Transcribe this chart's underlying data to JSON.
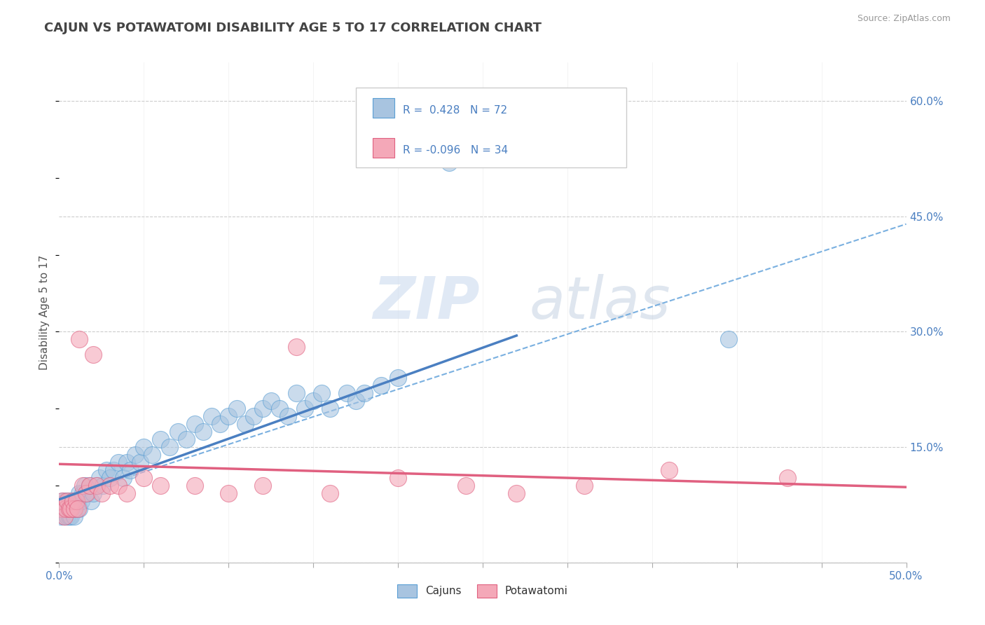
{
  "title": "CAJUN VS POTAWATOMI DISABILITY AGE 5 TO 17 CORRELATION CHART",
  "source_text": "Source: ZipAtlas.com",
  "ylabel": "Disability Age 5 to 17",
  "xlim": [
    0,
    0.5
  ],
  "ylim": [
    0,
    0.65
  ],
  "cajun_color": "#a8c4e0",
  "cajun_edge_color": "#5a9fd4",
  "potawatomi_color": "#f4a8b8",
  "potawatomi_edge_color": "#e06080",
  "cajun_line_color": "#4a7fc1",
  "potawatomi_line_color": "#e06080",
  "dash_line_color": "#7ab0e0",
  "watermark_color": "#d0dff0",
  "background_color": "#ffffff",
  "grid_color": "#cccccc",
  "title_color": "#444444",
  "tick_label_color": "#4a7fc1",
  "ylabel_color": "#555555",
  "cajun_x": [
    0.001,
    0.002,
    0.002,
    0.003,
    0.003,
    0.004,
    0.004,
    0.005,
    0.005,
    0.006,
    0.006,
    0.007,
    0.007,
    0.008,
    0.008,
    0.009,
    0.009,
    0.01,
    0.01,
    0.011,
    0.012,
    0.012,
    0.013,
    0.014,
    0.015,
    0.016,
    0.017,
    0.018,
    0.019,
    0.02,
    0.022,
    0.024,
    0.026,
    0.028,
    0.03,
    0.032,
    0.035,
    0.038,
    0.04,
    0.042,
    0.045,
    0.048,
    0.05,
    0.055,
    0.06,
    0.065,
    0.07,
    0.075,
    0.08,
    0.085,
    0.09,
    0.095,
    0.1,
    0.105,
    0.11,
    0.115,
    0.12,
    0.125,
    0.13,
    0.135,
    0.14,
    0.145,
    0.15,
    0.155,
    0.16,
    0.17,
    0.175,
    0.18,
    0.19,
    0.2,
    0.23,
    0.395
  ],
  "cajun_y": [
    0.06,
    0.07,
    0.08,
    0.06,
    0.07,
    0.07,
    0.08,
    0.06,
    0.07,
    0.06,
    0.08,
    0.07,
    0.06,
    0.07,
    0.08,
    0.06,
    0.07,
    0.07,
    0.08,
    0.08,
    0.07,
    0.09,
    0.08,
    0.09,
    0.1,
    0.09,
    0.09,
    0.1,
    0.08,
    0.09,
    0.1,
    0.11,
    0.1,
    0.12,
    0.11,
    0.12,
    0.13,
    0.11,
    0.13,
    0.12,
    0.14,
    0.13,
    0.15,
    0.14,
    0.16,
    0.15,
    0.17,
    0.16,
    0.18,
    0.17,
    0.19,
    0.18,
    0.19,
    0.2,
    0.18,
    0.19,
    0.2,
    0.21,
    0.2,
    0.19,
    0.22,
    0.2,
    0.21,
    0.22,
    0.2,
    0.22,
    0.21,
    0.22,
    0.23,
    0.24,
    0.52,
    0.29
  ],
  "potawatomi_x": [
    0.001,
    0.002,
    0.003,
    0.004,
    0.005,
    0.006,
    0.007,
    0.008,
    0.009,
    0.01,
    0.011,
    0.012,
    0.014,
    0.016,
    0.018,
    0.02,
    0.022,
    0.025,
    0.03,
    0.035,
    0.04,
    0.05,
    0.06,
    0.08,
    0.1,
    0.12,
    0.14,
    0.16,
    0.2,
    0.24,
    0.27,
    0.31,
    0.36,
    0.43
  ],
  "potawatomi_y": [
    0.07,
    0.08,
    0.06,
    0.07,
    0.08,
    0.07,
    0.07,
    0.08,
    0.07,
    0.08,
    0.07,
    0.29,
    0.1,
    0.09,
    0.1,
    0.27,
    0.1,
    0.09,
    0.1,
    0.1,
    0.09,
    0.11,
    0.1,
    0.1,
    0.09,
    0.1,
    0.28,
    0.09,
    0.11,
    0.1,
    0.09,
    0.1,
    0.12,
    0.11
  ],
  "cajun_trend_x0": 0.0,
  "cajun_trend_y0": 0.082,
  "cajun_trend_x1": 0.27,
  "cajun_trend_y1": 0.295,
  "potawatomi_trend_x0": 0.0,
  "potawatomi_trend_y0": 0.128,
  "potawatomi_trend_x1": 0.5,
  "potawatomi_trend_y1": 0.098,
  "dash_trend_x0": 0.0,
  "dash_trend_y0": 0.082,
  "dash_trend_x1": 0.5,
  "dash_trend_y1": 0.44
}
